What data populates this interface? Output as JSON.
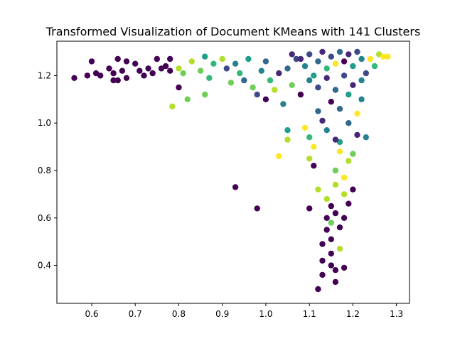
{
  "chart_data": {
    "type": "scatter",
    "title": "Transformed Visualization of Document KMeans with 141 Clusters",
    "xlabel": "",
    "ylabel": "",
    "xlim": [
      0.52,
      1.33
    ],
    "ylim": [
      0.24,
      1.345
    ],
    "xticks": [
      0.6,
      0.7,
      0.8,
      0.9,
      1.0,
      1.1,
      1.2,
      1.3
    ],
    "xtick_labels": [
      "0.6",
      "0.7",
      "0.8",
      "0.9",
      "1.0",
      "1.1",
      "1.2",
      "1.3"
    ],
    "yticks": [
      0.4,
      0.6,
      0.8,
      1.0,
      1.2
    ],
    "ytick_labels": [
      "0.4",
      "0.6",
      "0.8",
      "1.0",
      "1.2"
    ],
    "grid": false,
    "colormap": "viridis",
    "palette": [
      "#440154",
      "#482878",
      "#3e4989",
      "#31688e",
      "#26828e",
      "#1f9e89",
      "#35b779",
      "#6ece58",
      "#b5de2b",
      "#fde725"
    ],
    "points": [
      [
        0.56,
        1.19,
        0
      ],
      [
        0.59,
        1.2,
        0
      ],
      [
        0.6,
        1.26,
        0
      ],
      [
        0.61,
        1.21,
        0
      ],
      [
        0.62,
        1.2,
        0
      ],
      [
        0.64,
        1.23,
        0
      ],
      [
        0.65,
        1.18,
        0
      ],
      [
        0.65,
        1.21,
        0
      ],
      [
        0.66,
        1.18,
        0
      ],
      [
        0.66,
        1.27,
        0
      ],
      [
        0.67,
        1.22,
        0
      ],
      [
        0.68,
        1.26,
        0
      ],
      [
        0.68,
        1.19,
        0
      ],
      [
        0.7,
        1.25,
        0
      ],
      [
        0.71,
        1.22,
        0
      ],
      [
        0.72,
        1.2,
        0
      ],
      [
        0.73,
        1.23,
        0
      ],
      [
        0.74,
        1.21,
        0
      ],
      [
        0.75,
        1.27,
        0
      ],
      [
        0.76,
        1.23,
        0
      ],
      [
        0.77,
        1.24,
        0
      ],
      [
        0.78,
        1.22,
        0
      ],
      [
        0.78,
        1.27,
        0
      ],
      [
        0.8,
        1.15,
        0
      ],
      [
        0.93,
        0.73,
        0
      ],
      [
        0.98,
        0.64,
        0
      ],
      [
        0.785,
        1.07,
        8
      ],
      [
        0.8,
        1.23,
        8
      ],
      [
        0.81,
        1.21,
        7
      ],
      [
        0.82,
        1.1,
        7
      ],
      [
        0.83,
        1.26,
        8
      ],
      [
        0.85,
        1.22,
        7
      ],
      [
        0.86,
        1.28,
        5
      ],
      [
        0.86,
        1.12,
        7
      ],
      [
        0.88,
        1.25,
        6
      ],
      [
        0.87,
        1.19,
        6
      ],
      [
        0.9,
        1.27,
        8
      ],
      [
        0.91,
        1.23,
        2
      ],
      [
        0.92,
        1.17,
        7
      ],
      [
        0.93,
        1.25,
        4
      ],
      [
        0.94,
        1.21,
        6
      ],
      [
        0.95,
        1.18,
        3
      ],
      [
        0.96,
        1.27,
        5
      ],
      [
        0.97,
        1.15,
        7
      ],
      [
        0.98,
        1.12,
        2
      ],
      [
        0.99,
        1.22,
        4
      ],
      [
        1.0,
        1.1,
        0
      ],
      [
        1.0,
        1.26,
        3
      ],
      [
        1.01,
        1.18,
        6
      ],
      [
        1.02,
        1.14,
        8
      ],
      [
        1.03,
        1.21,
        1
      ],
      [
        1.03,
        0.86,
        9
      ],
      [
        1.04,
        1.08,
        4
      ],
      [
        1.05,
        0.97,
        5
      ],
      [
        1.05,
        0.93,
        8
      ],
      [
        1.06,
        1.16,
        7
      ],
      [
        1.07,
        1.27,
        2
      ],
      [
        1.08,
        1.12,
        0
      ],
      [
        1.09,
        0.98,
        9
      ],
      [
        1.1,
        0.85,
        8
      ],
      [
        1.1,
        0.94,
        6
      ],
      [
        1.1,
        0.64,
        0
      ],
      [
        1.11,
        0.82,
        0
      ],
      [
        1.11,
        0.9,
        9
      ],
      [
        1.12,
        1.05,
        3
      ],
      [
        1.12,
        0.72,
        8
      ],
      [
        1.12,
        0.3,
        0
      ],
      [
        1.13,
        0.36,
        0
      ],
      [
        1.13,
        0.42,
        0
      ],
      [
        1.13,
        0.49,
        0
      ],
      [
        1.14,
        0.55,
        0
      ],
      [
        1.14,
        0.6,
        0
      ],
      [
        1.14,
        0.68,
        8
      ],
      [
        1.15,
        0.4,
        0
      ],
      [
        1.15,
        0.45,
        0
      ],
      [
        1.15,
        0.51,
        0
      ],
      [
        1.15,
        0.58,
        7
      ],
      [
        1.15,
        0.65,
        0
      ],
      [
        1.16,
        0.33,
        0
      ],
      [
        1.16,
        0.38,
        0
      ],
      [
        1.16,
        0.62,
        0
      ],
      [
        1.16,
        0.74,
        8
      ],
      [
        1.16,
        0.8,
        7
      ],
      [
        1.17,
        0.47,
        8
      ],
      [
        1.17,
        0.56,
        0
      ],
      [
        1.17,
        0.88,
        9
      ],
      [
        1.17,
        0.92,
        5
      ],
      [
        1.18,
        0.39,
        0
      ],
      [
        1.18,
        0.6,
        0
      ],
      [
        1.18,
        0.7,
        8
      ],
      [
        1.18,
        0.77,
        9
      ],
      [
        1.19,
        0.66,
        0
      ],
      [
        1.19,
        0.84,
        8
      ],
      [
        1.19,
        1.0,
        3
      ],
      [
        1.2,
        0.72,
        0
      ],
      [
        1.2,
        0.87,
        7
      ],
      [
        1.21,
        0.95,
        1
      ],
      [
        1.21,
        1.04,
        9
      ],
      [
        1.22,
        1.1,
        4
      ],
      [
        1.23,
        0.94,
        4
      ],
      [
        1.23,
        1.21,
        2
      ],
      [
        1.24,
        1.27,
        9
      ],
      [
        1.25,
        1.24,
        6
      ],
      [
        1.26,
        1.29,
        8
      ],
      [
        1.27,
        1.28,
        9
      ],
      [
        1.28,
        1.28,
        9
      ],
      [
        1.08,
        1.27,
        1
      ],
      [
        1.09,
        1.24,
        4
      ],
      [
        1.1,
        1.29,
        2
      ],
      [
        1.11,
        1.2,
        5
      ],
      [
        1.12,
        1.26,
        3
      ],
      [
        1.13,
        1.3,
        1
      ],
      [
        1.14,
        1.23,
        6
      ],
      [
        1.15,
        1.28,
        2
      ],
      [
        1.16,
        1.25,
        9
      ],
      [
        1.17,
        1.3,
        3
      ],
      [
        1.18,
        1.26,
        0
      ],
      [
        1.19,
        1.29,
        1
      ],
      [
        1.2,
        1.24,
        5
      ],
      [
        1.21,
        1.3,
        2
      ],
      [
        1.22,
        1.27,
        4
      ],
      [
        1.05,
        1.23,
        3
      ],
      [
        1.06,
        1.29,
        1
      ],
      [
        1.1,
        1.18,
        4
      ],
      [
        1.12,
        1.15,
        2
      ],
      [
        1.14,
        1.19,
        1
      ],
      [
        1.16,
        1.14,
        3
      ],
      [
        1.18,
        1.2,
        2
      ],
      [
        1.2,
        1.16,
        1
      ],
      [
        1.22,
        1.18,
        4
      ],
      [
        1.15,
        1.09,
        0
      ],
      [
        1.17,
        1.06,
        3
      ],
      [
        1.19,
        1.12,
        5
      ],
      [
        1.13,
        1.01,
        1
      ],
      [
        1.14,
        0.97,
        4
      ],
      [
        1.16,
        0.93,
        1
      ]
    ]
  }
}
